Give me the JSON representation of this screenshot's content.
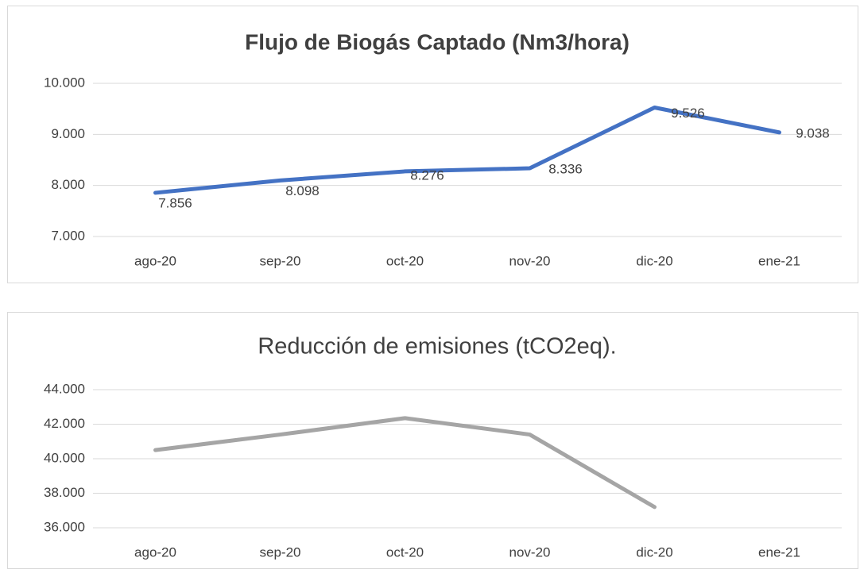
{
  "chart_data": [
    {
      "type": "line",
      "title": "Flujo de Biogás Captado (Nm3/hora)",
      "categories": [
        "ago-20",
        "sep-20",
        "oct-20",
        "nov-20",
        "dic-20",
        "ene-21"
      ],
      "values": [
        7856,
        8098,
        8276,
        8336,
        9526,
        9038
      ],
      "value_labels": [
        "7.856",
        "8.098",
        "8.276",
        "8.336",
        "9.526",
        "9.038"
      ],
      "color": "#4472c4",
      "ylim": [
        7000,
        10000
      ],
      "yticks": [
        {
          "value": 7000,
          "label": "7.000"
        },
        {
          "value": 8000,
          "label": "8.000"
        },
        {
          "value": 9000,
          "label": "9.000"
        },
        {
          "value": 10000,
          "label": "10.000"
        }
      ],
      "grid": true
    },
    {
      "type": "line",
      "title": "Reducción de emisiones (tCO2eq).",
      "categories": [
        "ago-20",
        "sep-20",
        "oct-20",
        "nov-20",
        "dic-20",
        "ene-21"
      ],
      "values": [
        40500,
        41400,
        42350,
        41400,
        37200,
        null
      ],
      "color": "#a5a5a5",
      "ylim": [
        36000,
        44000
      ],
      "yticks": [
        {
          "value": 36000,
          "label": "36.000"
        },
        {
          "value": 38000,
          "label": "38.000"
        },
        {
          "value": 40000,
          "label": "40.000"
        },
        {
          "value": 42000,
          "label": "42.000"
        },
        {
          "value": 44000,
          "label": "44.000"
        }
      ],
      "grid": true
    }
  ]
}
